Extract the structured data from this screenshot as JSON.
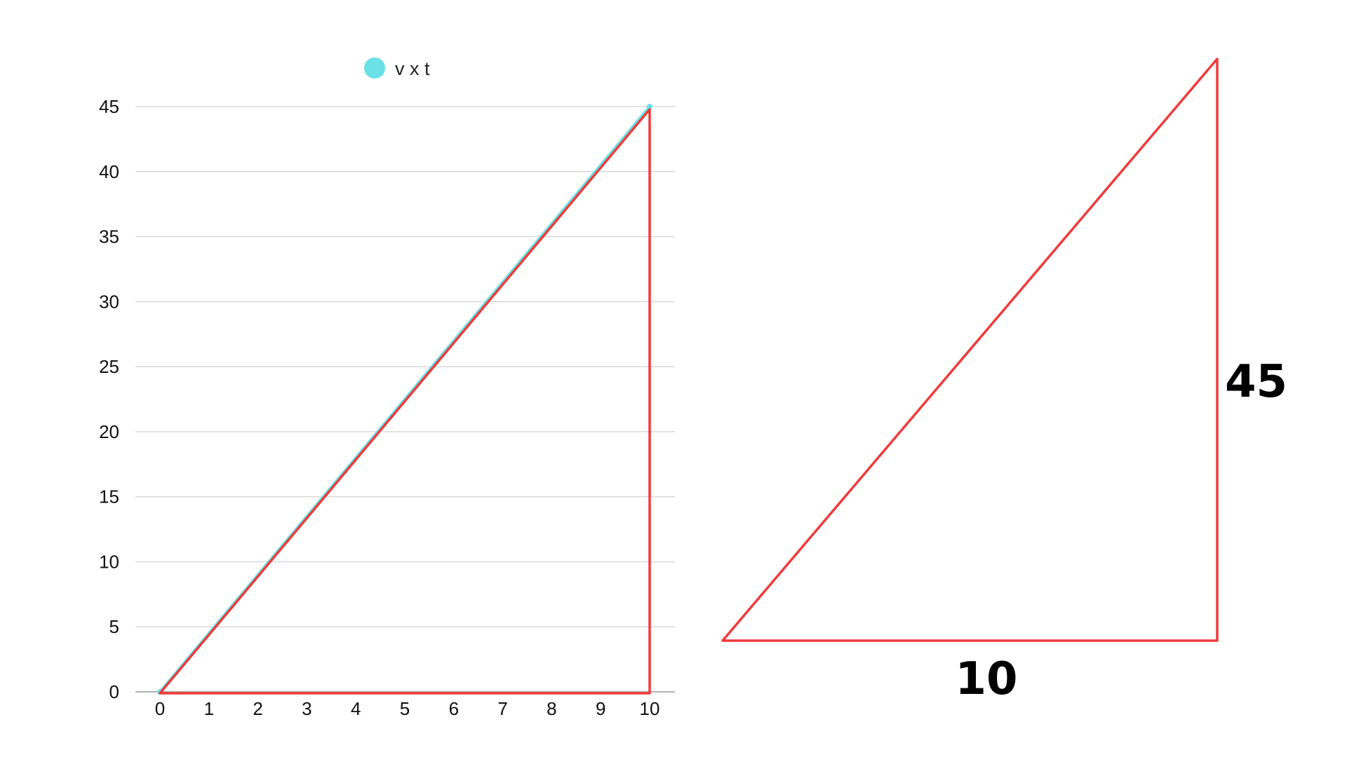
{
  "chart_data": {
    "type": "line",
    "x": [
      0,
      10
    ],
    "series": [
      {
        "name": "v x t",
        "values": [
          0,
          45
        ]
      }
    ],
    "xlim": [
      0,
      10
    ],
    "ylim": [
      0,
      45
    ],
    "xticks": [
      "0",
      "1",
      "2",
      "3",
      "4",
      "5",
      "6",
      "7",
      "8",
      "9",
      "10"
    ],
    "yticks": [
      "0",
      "5",
      "10",
      "15",
      "20",
      "25",
      "30",
      "35",
      "40",
      "45"
    ],
    "grid": "horizontal",
    "legend_position": "top-center",
    "triangle_overlay": {
      "vertices": [
        [
          0,
          0
        ],
        [
          10,
          0
        ],
        [
          10,
          45
        ]
      ]
    }
  },
  "triangle_diagram": {
    "base_label": "10",
    "height_label": "45"
  },
  "colors": {
    "series": "#69e1e6",
    "triangle": "#ef3b3b",
    "grid": "#d9d9d9",
    "axis": "#b3b3b3"
  }
}
